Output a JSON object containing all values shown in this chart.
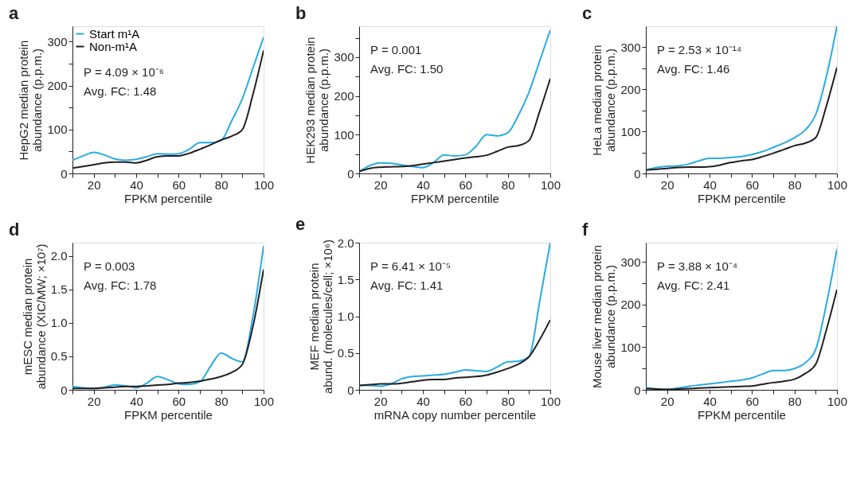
{
  "chart_data": [
    {
      "type": "line",
      "title": "a",
      "xlabel": "FPKM percentile",
      "ylabel": "HepG2 median protein\nabundance (p.p.m.)",
      "legend": "top left",
      "grid": false,
      "x": [
        10,
        15,
        20,
        25,
        30,
        35,
        40,
        45,
        50,
        55,
        60,
        65,
        70,
        75,
        80,
        85,
        90,
        95,
        100
      ],
      "xlim": [
        10,
        100
      ],
      "xticks": [
        {
          "value": 10,
          "label": null
        },
        20,
        {
          "value": 30,
          "label": null
        },
        40,
        {
          "value": 50,
          "label": null
        },
        60,
        {
          "value": 70,
          "label": null
        },
        80,
        {
          "value": 90,
          "label": null
        },
        100
      ],
      "ylim": [
        0,
        335
      ],
      "yticks": [
        0,
        {
          "value": 50,
          "label": null
        },
        100,
        {
          "value": 150,
          "label": null
        },
        200,
        {
          "value": 250,
          "label": null
        },
        300
      ],
      "annotations": [
        "P = 4.09 × 10⁻⁶",
        "Avg. FC: 1.48"
      ],
      "series": [
        {
          "name": "Start m¹A",
          "color": "#29abe2",
          "values": [
            30,
            40,
            48,
            42,
            33,
            30,
            32,
            38,
            45,
            44,
            45,
            55,
            70,
            70,
            75,
            120,
            170,
            240,
            310
          ]
        },
        {
          "name": "Non-m¹A",
          "color": "#231f20",
          "values": [
            12,
            16,
            20,
            24,
            26,
            26,
            24,
            30,
            38,
            40,
            40,
            46,
            55,
            65,
            76,
            85,
            100,
            180,
            280
          ]
        }
      ]
    },
    {
      "type": "line",
      "title": "b",
      "xlabel": "FPKM percentile",
      "ylabel": "HEK293 median protein\nabundance (p.p.m.)",
      "grid": false,
      "x": [
        10,
        15,
        20,
        25,
        30,
        35,
        40,
        45,
        50,
        55,
        60,
        65,
        70,
        75,
        80,
        85,
        90,
        95,
        100
      ],
      "xlim": [
        10,
        100
      ],
      "xticks": [
        {
          "value": 10,
          "label": null
        },
        20,
        {
          "value": 30,
          "label": null
        },
        40,
        {
          "value": 50,
          "label": null
        },
        60,
        {
          "value": 70,
          "label": null
        },
        80,
        {
          "value": 90,
          "label": null
        },
        100
      ],
      "ylim": [
        0,
        380
      ],
      "yticks": [
        0,
        {
          "value": 50,
          "label": null
        },
        100,
        {
          "value": 150,
          "label": null
        },
        200,
        {
          "value": 250,
          "label": null
        },
        300,
        {
          "value": 350,
          "label": null
        }
      ],
      "annotations": [
        "P = 0.001",
        "Avg. FC: 1.50"
      ],
      "series": [
        {
          "color": "#29abe2",
          "values": [
            5,
            20,
            27,
            26,
            22,
            18,
            15,
            28,
            48,
            45,
            48,
            70,
            100,
            97,
            105,
            150,
            210,
            290,
            370
          ]
        },
        {
          "color": "#231f20",
          "values": [
            5,
            13,
            16,
            17,
            18,
            20,
            24,
            28,
            32,
            36,
            40,
            43,
            47,
            57,
            68,
            72,
            85,
            160,
            245
          ]
        }
      ]
    },
    {
      "type": "line",
      "title": "c",
      "xlabel": "FPKM percentile",
      "ylabel": "HeLa median protein\nabundance (p.p.m.)",
      "grid": false,
      "x": [
        10,
        15,
        20,
        25,
        30,
        35,
        40,
        45,
        50,
        55,
        60,
        65,
        70,
        75,
        80,
        85,
        90,
        95,
        100
      ],
      "xlim": [
        10,
        100
      ],
      "xticks": [
        {
          "value": 10,
          "label": null
        },
        20,
        {
          "value": 30,
          "label": null
        },
        40,
        {
          "value": 50,
          "label": null
        },
        60,
        {
          "value": 70,
          "label": null
        },
        80,
        {
          "value": 90,
          "label": null
        },
        100
      ],
      "ylim": [
        0,
        350
      ],
      "yticks": [
        0,
        {
          "value": 50,
          "label": null
        },
        100,
        {
          "value": 150,
          "label": null
        },
        200,
        {
          "value": 250,
          "label": null
        },
        300
      ],
      "annotations": [
        "P = 2.53 × 10⁻¹⁴",
        "Avg. FC: 1.46"
      ],
      "series": [
        {
          "color": "#29abe2",
          "values": [
            8,
            14,
            17,
            18,
            22,
            30,
            36,
            36,
            38,
            40,
            45,
            52,
            62,
            72,
            85,
            103,
            140,
            230,
            350
          ]
        },
        {
          "color": "#231f20",
          "values": [
            8,
            10,
            12,
            14,
            15,
            15,
            16,
            20,
            26,
            30,
            33,
            40,
            48,
            57,
            66,
            72,
            85,
            160,
            252
          ]
        }
      ]
    },
    {
      "type": "line",
      "title": "d",
      "xlabel": "FPKM percentile",
      "ylabel": "mESC median protein\nabundance (XIC/MW; ×10⁷)",
      "grid": false,
      "x": [
        10,
        15,
        20,
        25,
        30,
        35,
        40,
        45,
        50,
        55,
        60,
        65,
        70,
        75,
        80,
        85,
        90,
        95,
        100
      ],
      "xlim": [
        10,
        100
      ],
      "xticks": [
        {
          "value": 10,
          "label": null
        },
        20,
        {
          "value": 30,
          "label": null
        },
        40,
        {
          "value": 50,
          "label": null
        },
        60,
        {
          "value": 70,
          "label": null
        },
        80,
        {
          "value": 90,
          "label": null
        },
        100
      ],
      "ylim": [
        0,
        2.2
      ],
      "yticks": [
        {
          "value": 0,
          "label": "0"
        },
        0.5,
        {
          "value": 1,
          "label": "1.0"
        },
        1.5,
        {
          "value": 2,
          "label": "2.0"
        }
      ],
      "annotations": [
        "P = 0.003",
        "Avg. FC: 1.78"
      ],
      "series": [
        {
          "color": "#29abe2",
          "values": [
            0.05,
            0.03,
            0.02,
            0.04,
            0.07,
            0.06,
            0.03,
            0.1,
            0.2,
            0.15,
            0.09,
            0.08,
            0.12,
            0.35,
            0.55,
            0.47,
            0.42,
            1.1,
            2.15
          ]
        },
        {
          "color": "#231f20",
          "values": [
            0.02,
            0.02,
            0.02,
            0.03,
            0.04,
            0.05,
            0.05,
            0.06,
            0.07,
            0.08,
            0.1,
            0.11,
            0.13,
            0.16,
            0.2,
            0.26,
            0.38,
            0.95,
            1.8
          ]
        }
      ]
    },
    {
      "type": "line",
      "title": "e",
      "xlabel": "mRNA copy number percentile",
      "ylabel": "MEF median protein\nabund. (molecules/cell; ×10⁶)",
      "grid": false,
      "x": [
        10,
        15,
        20,
        25,
        30,
        35,
        40,
        45,
        50,
        55,
        60,
        65,
        70,
        75,
        80,
        85,
        90,
        95,
        100
      ],
      "xlim": [
        10,
        100
      ],
      "xticks": [
        {
          "value": 10,
          "label": null
        },
        20,
        {
          "value": 30,
          "label": null
        },
        40,
        {
          "value": 50,
          "label": null
        },
        60,
        {
          "value": 70,
          "label": null
        },
        80,
        {
          "value": 90,
          "label": null
        },
        100
      ],
      "ylim": [
        0,
        2.0
      ],
      "yticks": [
        {
          "value": 0,
          "label": "0"
        },
        0.5,
        {
          "value": 1,
          "label": "1.0"
        },
        1.5,
        {
          "value": 2,
          "label": "2.0"
        }
      ],
      "annotations": [
        "P = 6.41 × 10⁻⁵",
        "Avg. FC: 1.41"
      ],
      "series": [
        {
          "color": "#29abe2",
          "values": [
            0.06,
            0.06,
            0.05,
            0.08,
            0.15,
            0.18,
            0.19,
            0.2,
            0.21,
            0.24,
            0.27,
            0.26,
            0.25,
            0.31,
            0.38,
            0.39,
            0.45,
            1.2,
            2.0
          ]
        },
        {
          "color": "#231f20",
          "values": [
            0.06,
            0.07,
            0.08,
            0.08,
            0.09,
            0.11,
            0.13,
            0.14,
            0.14,
            0.16,
            0.17,
            0.18,
            0.2,
            0.24,
            0.29,
            0.35,
            0.45,
            0.68,
            0.95
          ]
        }
      ]
    },
    {
      "type": "line",
      "title": "f",
      "xlabel": "FPKM percentile",
      "ylabel": "Mouse liver median protein\nabundance (p.p.m.)",
      "grid": false,
      "x": [
        10,
        15,
        20,
        25,
        30,
        35,
        40,
        45,
        50,
        55,
        60,
        65,
        70,
        75,
        80,
        85,
        90,
        95,
        100
      ],
      "xlim": [
        10,
        100
      ],
      "xticks": [
        {
          "value": 10,
          "label": null
        },
        20,
        {
          "value": 30,
          "label": null
        },
        40,
        {
          "value": 50,
          "label": null
        },
        60,
        {
          "value": 70,
          "label": null
        },
        80,
        {
          "value": 90,
          "label": null
        },
        100
      ],
      "ylim": [
        0,
        345
      ],
      "yticks": [
        0,
        {
          "value": 50,
          "label": null
        },
        100,
        {
          "value": 150,
          "label": null
        },
        200,
        {
          "value": 250,
          "label": null
        },
        300
      ],
      "annotations": [
        "P = 3.88 × 10⁻⁴",
        "Avg. FC: 2.41"
      ],
      "series": [
        {
          "color": "#29abe2",
          "values": [
            5,
            2,
            1,
            4,
            8,
            11,
            14,
            17,
            20,
            23,
            28,
            37,
            45,
            45,
            50,
            63,
            95,
            200,
            330
          ]
        },
        {
          "color": "#231f20",
          "values": [
            3,
            2,
            1,
            2,
            3,
            4,
            5,
            6,
            7,
            8,
            9,
            13,
            17,
            20,
            25,
            38,
            60,
            140,
            235
          ]
        }
      ]
    }
  ]
}
